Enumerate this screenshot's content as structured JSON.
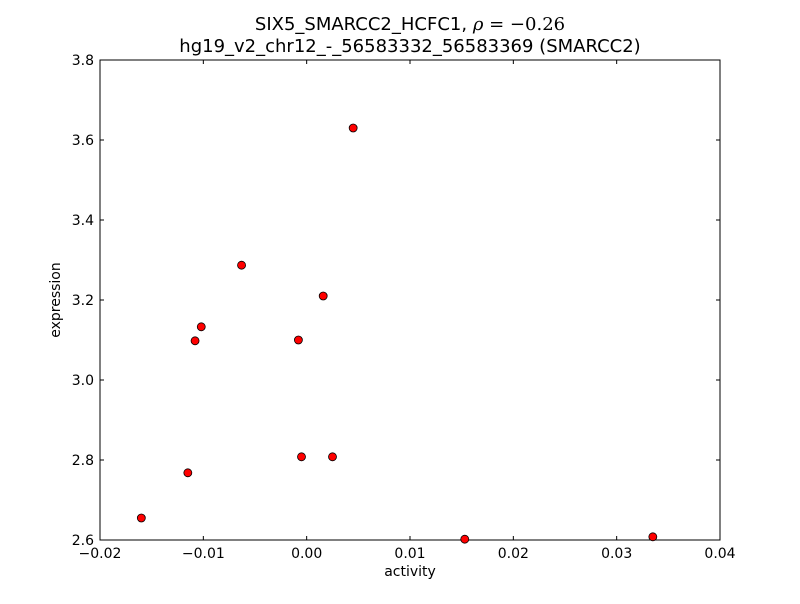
{
  "chart_data": {
    "type": "scatter",
    "title_line1_text": "SIX5_SMARCC2_HCFC1, ",
    "title_line1_rho": "ρ",
    "title_line1_value": " = −0.26",
    "title_line2": "hg19_v2_chr12_-_56583332_56583369 (SMARCC2)",
    "xlabel": "activity",
    "ylabel": "expression",
    "xlim": [
      -0.02,
      0.04
    ],
    "ylim": [
      2.6,
      3.8
    ],
    "xticks": [
      -0.02,
      -0.01,
      0.0,
      0.01,
      0.02,
      0.03,
      0.04
    ],
    "xtick_labels": [
      "−0.02",
      "−0.01",
      "0.00",
      "0.01",
      "0.02",
      "0.03",
      "0.04"
    ],
    "yticks": [
      2.6,
      2.8,
      3.0,
      3.2,
      3.4,
      3.6,
      3.8
    ],
    "ytick_labels": [
      "2.6",
      "2.8",
      "3.0",
      "3.2",
      "3.4",
      "3.6",
      "3.8"
    ],
    "grid": false,
    "marker_color": "#ff0000",
    "marker_edge_color": "#000000",
    "points": [
      {
        "x": 0.0045,
        "y": 3.63
      },
      {
        "x": -0.0063,
        "y": 3.287
      },
      {
        "x": 0.0016,
        "y": 3.21
      },
      {
        "x": -0.0102,
        "y": 3.133
      },
      {
        "x": -0.0108,
        "y": 3.098
      },
      {
        "x": -0.0008,
        "y": 3.1
      },
      {
        "x": -0.0005,
        "y": 2.808
      },
      {
        "x": 0.0025,
        "y": 2.808
      },
      {
        "x": -0.0115,
        "y": 2.768
      },
      {
        "x": -0.016,
        "y": 2.655
      },
      {
        "x": 0.0153,
        "y": 2.602
      },
      {
        "x": 0.0335,
        "y": 2.608
      }
    ]
  }
}
